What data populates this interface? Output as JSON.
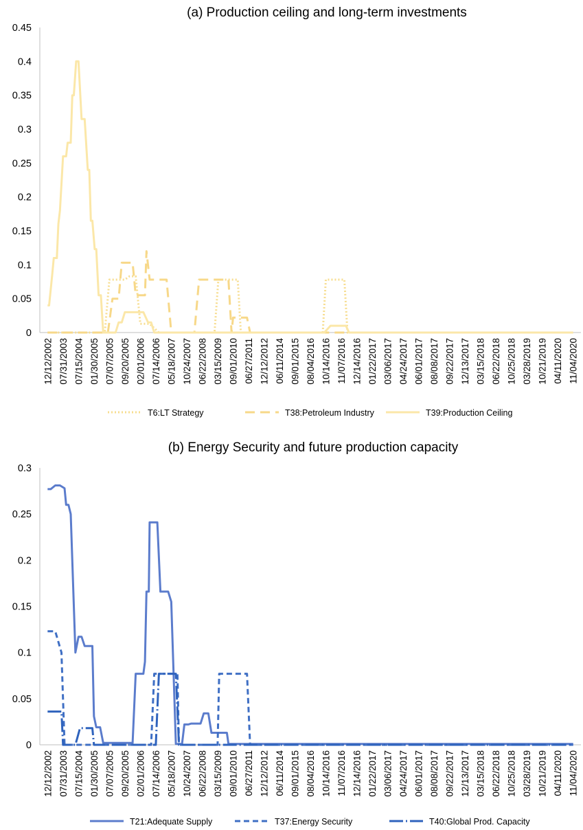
{
  "chart_data": [
    {
      "type": "line",
      "title": "(a)  Production ceiling and long-term investments",
      "xlabel": "",
      "ylabel": "",
      "ylim": [
        0,
        0.45
      ],
      "yticks": [
        "0",
        "0.05",
        "0.1",
        "0.15",
        "0.2",
        "0.25",
        "0.3",
        "0.35",
        "0.4",
        "0.45"
      ],
      "grid": false,
      "legend_position": "bottom",
      "categories": [
        "12/12/2002",
        "07/31/2003",
        "07/15/2004",
        "01/30/2005",
        "07/07/2005",
        "09/20/2005",
        "02/01/2006",
        "07/14/2006",
        "05/18/2007",
        "10/24/2007",
        "06/22/2008",
        "03/15/2009",
        "09/01/2010",
        "06/27/2011",
        "12/12/2012",
        "06/11/2014",
        "09/01/2015",
        "08/04/2016",
        "10/14/2016",
        "11/07/2016",
        "12/14/2016",
        "01/22/2017",
        "03/06/2017",
        "04/24/2017",
        "06/01/2017",
        "08/08/2017",
        "09/22/2017",
        "12/13/2017",
        "03/15/2018",
        "06/22/2018",
        "10/25/2018",
        "03/28/2019",
        "10/21/2019",
        "04/11/2020",
        "11/04/2020"
      ],
      "series": [
        {
          "name": "T6:LT Strategy",
          "style": "dotted",
          "color": "#f7dd8f",
          "points": [
            [
              0,
              0
            ],
            [
              3.7,
              0
            ],
            [
              4.0,
              0.078
            ],
            [
              5.0,
              0.078
            ],
            [
              5.3,
              0.083
            ],
            [
              5.7,
              0.083
            ],
            [
              6.0,
              0.013
            ],
            [
              6.6,
              0.013
            ],
            [
              7.2,
              0
            ],
            [
              10.8,
              0
            ],
            [
              11.05,
              0.078
            ],
            [
              12.3,
              0.078
            ],
            [
              12.5,
              0
            ],
            [
              17.8,
              0
            ],
            [
              18.0,
              0.078
            ],
            [
              19.2,
              0.078
            ],
            [
              19.4,
              0
            ],
            [
              34,
              0
            ]
          ]
        },
        {
          "name": "T38:Petroleum Industry",
          "style": "dashed",
          "color": "#f7d889",
          "points": [
            [
              0,
              0
            ],
            [
              3.9,
              0
            ],
            [
              4.2,
              0.05
            ],
            [
              4.6,
              0.05
            ],
            [
              4.8,
              0.103
            ],
            [
              5.5,
              0.103
            ],
            [
              5.7,
              0.055
            ],
            [
              6.3,
              0.055
            ],
            [
              6.4,
              0.12
            ],
            [
              6.6,
              0.078
            ],
            [
              7.7,
              0.078
            ],
            [
              8.0,
              0
            ],
            [
              9.5,
              0
            ],
            [
              9.8,
              0.078
            ],
            [
              11.7,
              0.078
            ],
            [
              11.9,
              0
            ],
            [
              12.0,
              0.022
            ],
            [
              12.9,
              0.022
            ],
            [
              13.1,
              0
            ],
            [
              34,
              0
            ]
          ]
        },
        {
          "name": "T39:Production Ceiling",
          "style": "solid",
          "color": "#fbe7a8",
          "points": [
            [
              0,
              0.04
            ],
            [
              0.1,
              0.04
            ],
            [
              0.3,
              0.085
            ],
            [
              0.4,
              0.11
            ],
            [
              0.6,
              0.11
            ],
            [
              0.7,
              0.16
            ],
            [
              0.8,
              0.18
            ],
            [
              1.0,
              0.26
            ],
            [
              1.2,
              0.26
            ],
            [
              1.3,
              0.28
            ],
            [
              1.5,
              0.28
            ],
            [
              1.6,
              0.35
            ],
            [
              1.7,
              0.35
            ],
            [
              1.85,
              0.4
            ],
            [
              2.0,
              0.4
            ],
            [
              2.2,
              0.315
            ],
            [
              2.4,
              0.315
            ],
            [
              2.6,
              0.24
            ],
            [
              2.7,
              0.24
            ],
            [
              2.8,
              0.165
            ],
            [
              2.9,
              0.165
            ],
            [
              3.05,
              0.123
            ],
            [
              3.15,
              0.123
            ],
            [
              3.3,
              0.055
            ],
            [
              3.45,
              0.055
            ],
            [
              3.6,
              0
            ],
            [
              4.4,
              0
            ],
            [
              4.6,
              0.015
            ],
            [
              4.8,
              0.015
            ],
            [
              5.0,
              0.03
            ],
            [
              6.2,
              0.03
            ],
            [
              6.5,
              0.015
            ],
            [
              6.7,
              0.015
            ],
            [
              6.9,
              0
            ],
            [
              17.9,
              0
            ],
            [
              18.3,
              0.01
            ],
            [
              19.3,
              0.01
            ],
            [
              19.5,
              0
            ],
            [
              34,
              0
            ]
          ]
        }
      ]
    },
    {
      "type": "line",
      "title": "(b) Energy Security and future production capacity",
      "xlabel": "",
      "ylabel": "",
      "ylim": [
        0,
        0.3
      ],
      "yticks": [
        "0",
        "0.05",
        "0.1",
        "0.15",
        "0.2",
        "0.25",
        "0.3"
      ],
      "grid": false,
      "legend_position": "bottom",
      "categories": [
        "12/12/2002",
        "07/31/2003",
        "07/15/2004",
        "01/30/2005",
        "07/07/2005",
        "09/20/2005",
        "02/01/2006",
        "07/14/2006",
        "05/18/2007",
        "10/24/2007",
        "06/22/2008",
        "03/15/2009",
        "09/01/2010",
        "06/27/2011",
        "12/12/2012",
        "06/11/2014",
        "09/01/2015",
        "08/04/2016",
        "10/14/2016",
        "11/07/2016",
        "12/14/2016",
        "01/22/2017",
        "03/06/2017",
        "04/24/2017",
        "06/01/2017",
        "08/08/2017",
        "09/22/2017",
        "12/13/2017",
        "03/15/2018",
        "06/22/2018",
        "10/25/2018",
        "03/28/2019",
        "10/21/2019",
        "04/11/2020",
        "11/04/2020"
      ],
      "series": [
        {
          "name": "T21:Adequate Supply",
          "style": "solid",
          "color": "#5b7ccc",
          "points": [
            [
              0,
              0.277
            ],
            [
              0.2,
              0.277
            ],
            [
              0.5,
              0.281
            ],
            [
              0.8,
              0.281
            ],
            [
              1.1,
              0.278
            ],
            [
              1.2,
              0.26
            ],
            [
              1.35,
              0.26
            ],
            [
              1.5,
              0.25
            ],
            [
              1.8,
              0.1
            ],
            [
              2.0,
              0.117
            ],
            [
              2.2,
              0.117
            ],
            [
              2.4,
              0.107
            ],
            [
              2.9,
              0.107
            ],
            [
              3.0,
              0.031
            ],
            [
              3.15,
              0.019
            ],
            [
              3.4,
              0.019
            ],
            [
              3.6,
              0.002
            ],
            [
              5.5,
              0.002
            ],
            [
              5.7,
              0.077
            ],
            [
              6.2,
              0.077
            ],
            [
              6.3,
              0.09
            ],
            [
              6.4,
              0.166
            ],
            [
              6.55,
              0.166
            ],
            [
              6.6,
              0.241
            ],
            [
              7.1,
              0.241
            ],
            [
              7.3,
              0.166
            ],
            [
              7.8,
              0.166
            ],
            [
              8.0,
              0.155
            ],
            [
              8.3,
              0.001
            ],
            [
              8.7,
              0.001
            ],
            [
              8.85,
              0.022
            ],
            [
              9.1,
              0.022
            ],
            [
              9.3,
              0.023
            ],
            [
              9.9,
              0.023
            ],
            [
              10.1,
              0.034
            ],
            [
              10.4,
              0.034
            ],
            [
              10.6,
              0.013
            ],
            [
              11.6,
              0.013
            ],
            [
              11.7,
              0.001
            ],
            [
              34,
              0.001
            ]
          ]
        },
        {
          "name": "T37:Energy Security",
          "style": "dashed",
          "color": "#3f6fc4",
          "points": [
            [
              0,
              0.123
            ],
            [
              0.5,
              0.123
            ],
            [
              0.9,
              0.1
            ],
            [
              1.1,
              0
            ],
            [
              6.7,
              0
            ],
            [
              6.9,
              0.077
            ],
            [
              7.0,
              0.077
            ],
            [
              8.4,
              0.077
            ],
            [
              8.5,
              0
            ],
            [
              11.0,
              0
            ],
            [
              11.1,
              0.077
            ],
            [
              12.9,
              0.077
            ],
            [
              13.1,
              0
            ],
            [
              34,
              0
            ]
          ]
        },
        {
          "name": "T40:Global Prod. Capacity",
          "style": "dash-dot",
          "color": "#2f63bd",
          "points": [
            [
              0,
              0.036
            ],
            [
              0.9,
              0.036
            ],
            [
              1.0,
              0
            ],
            [
              1.8,
              0
            ],
            [
              2.1,
              0.018
            ],
            [
              2.9,
              0.018
            ],
            [
              3.0,
              0
            ],
            [
              7.0,
              0
            ],
            [
              7.2,
              0.077
            ],
            [
              8.3,
              0.077
            ],
            [
              8.5,
              0
            ],
            [
              34,
              0
            ]
          ]
        }
      ]
    }
  ]
}
